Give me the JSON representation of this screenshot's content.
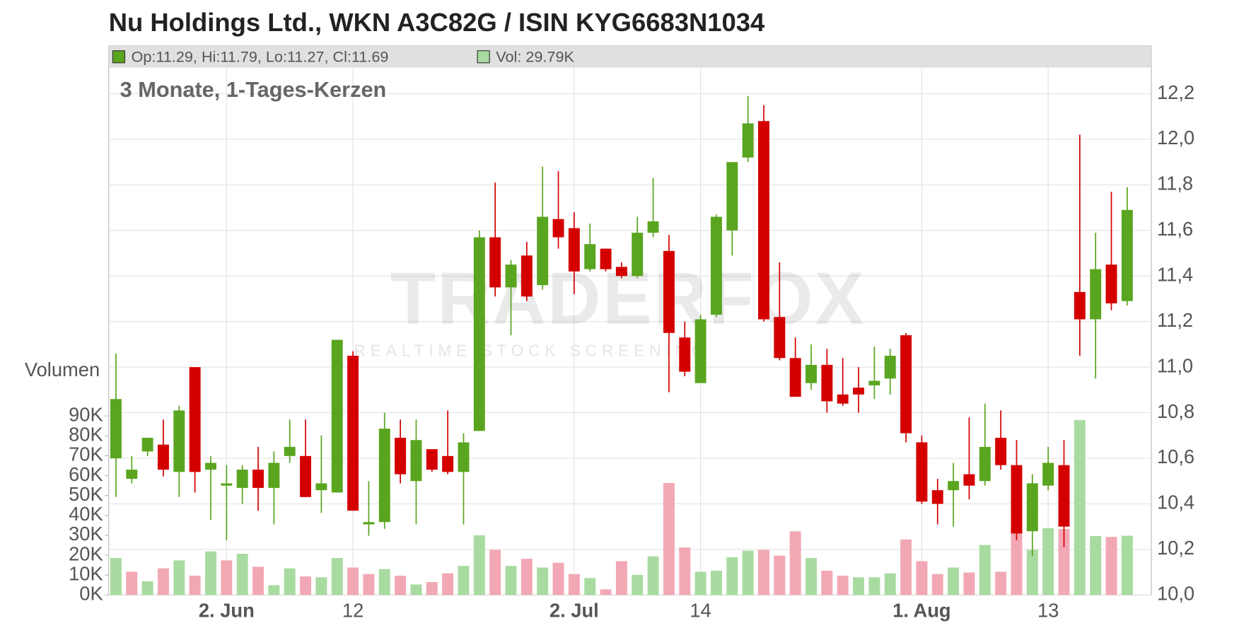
{
  "chart_data": {
    "type": "candlestick",
    "title": "Nu Holdings Ltd., WKN A3C82G / ISIN KYG6683N1034",
    "subtitle": "3 Monate, 1-Tages-Kerzen",
    "legend": {
      "ohlc": "Op:11.29, Hi:11.79, Lo:11.27, Cl:11.69",
      "volume": "Vol: 29.79K"
    },
    "volume_label": "Volumen",
    "watermark": {
      "brand": "TRADERFOX",
      "tagline": "REALTIME STOCK SCREENING"
    },
    "categories": [
      null,
      null,
      null,
      null,
      null,
      null,
      null,
      "2. Jun",
      null,
      null,
      null,
      null,
      null,
      null,
      null,
      "12",
      null,
      null,
      null,
      null,
      null,
      null,
      null,
      null,
      null,
      null,
      null,
      null,
      null,
      "2. Jul",
      null,
      null,
      null,
      null,
      null,
      null,
      null,
      "14",
      null,
      null,
      null,
      null,
      null,
      null,
      null,
      null,
      null,
      null,
      null,
      null,
      null,
      "1. Aug",
      null,
      null,
      null,
      null,
      null,
      null,
      null,
      "13",
      null,
      null,
      null,
      null,
      null
    ],
    "open": [
      10.6,
      10.51,
      10.63,
      10.66,
      10.54,
      11.0,
      10.55,
      10.48,
      10.47,
      10.55,
      10.47,
      10.61,
      10.61,
      10.46,
      10.45,
      11.05,
      10.31,
      10.32,
      10.69,
      10.5,
      10.64,
      10.61,
      10.54,
      10.72,
      11.57,
      11.35,
      11.49,
      11.36,
      11.65,
      11.61,
      11.43,
      11.52,
      11.44,
      11.4,
      11.59,
      11.51,
      11.13,
      10.93,
      11.23,
      11.6,
      11.92,
      12.08,
      11.22,
      11.04,
      10.93,
      11.01,
      10.88,
      10.91,
      10.92,
      10.95,
      11.14,
      10.67,
      10.46,
      10.46,
      10.53,
      10.5,
      10.69,
      10.57,
      10.28,
      10.48,
      10.57,
      11.33,
      11.21,
      11.45,
      11.29
    ],
    "high": [
      11.06,
      10.61,
      10.69,
      10.77,
      10.83,
      11.0,
      10.61,
      10.57,
      10.57,
      10.65,
      10.63,
      10.77,
      10.77,
      10.7,
      11.12,
      11.07,
      10.5,
      10.8,
      10.77,
      10.77,
      10.64,
      10.81,
      10.71,
      11.6,
      11.81,
      11.47,
      11.55,
      11.88,
      11.86,
      11.68,
      11.63,
      11.52,
      11.46,
      11.66,
      11.83,
      11.58,
      11.2,
      11.23,
      11.67,
      11.9,
      12.19,
      12.15,
      11.46,
      11.13,
      11.1,
      11.08,
      11.04,
      11.0,
      11.09,
      11.08,
      11.15,
      10.7,
      10.51,
      10.58,
      10.78,
      10.84,
      10.81,
      10.68,
      10.53,
      10.65,
      10.68,
      12.02,
      11.59,
      11.77,
      11.79
    ],
    "low": [
      10.43,
      10.49,
      10.61,
      10.52,
      10.43,
      10.45,
      10.33,
      10.24,
      10.4,
      10.37,
      10.31,
      10.58,
      10.43,
      10.36,
      10.45,
      10.37,
      10.26,
      10.29,
      10.49,
      10.31,
      10.54,
      10.53,
      10.31,
      10.72,
      11.31,
      11.14,
      11.29,
      11.34,
      11.52,
      11.32,
      11.42,
      11.42,
      11.39,
      11.39,
      11.57,
      10.89,
      10.96,
      10.93,
      11.22,
      11.49,
      11.9,
      11.2,
      11.03,
      10.87,
      10.9,
      10.8,
      10.83,
      10.8,
      10.86,
      10.88,
      10.67,
      10.4,
      10.31,
      10.3,
      10.42,
      10.48,
      10.55,
      10.24,
      10.17,
      10.46,
      10.21,
      11.05,
      10.95,
      11.25,
      11.27
    ],
    "close": [
      10.86,
      10.55,
      10.69,
      10.55,
      10.81,
      10.54,
      10.58,
      10.49,
      10.55,
      10.47,
      10.58,
      10.65,
      10.43,
      10.49,
      11.12,
      10.37,
      10.32,
      10.73,
      10.53,
      10.68,
      10.55,
      10.54,
      10.67,
      11.57,
      11.35,
      11.45,
      11.31,
      11.66,
      11.57,
      11.42,
      11.54,
      11.43,
      11.4,
      11.59,
      11.64,
      11.15,
      10.98,
      11.21,
      11.66,
      11.9,
      12.07,
      11.21,
      11.04,
      10.87,
      11.01,
      10.85,
      10.84,
      10.88,
      10.94,
      11.05,
      10.71,
      10.41,
      10.4,
      10.5,
      10.48,
      10.65,
      10.57,
      10.27,
      10.49,
      10.58,
      10.3,
      11.21,
      11.43,
      11.28,
      11.69
    ],
    "volume": [
      18600,
      11700,
      6900,
      13400,
      17400,
      9700,
      21900,
      17400,
      20700,
      14200,
      4900,
      13400,
      9300,
      8900,
      18600,
      13800,
      10500,
      13000,
      9700,
      5300,
      6500,
      10900,
      14600,
      30000,
      22700,
      14600,
      18200,
      13800,
      16200,
      10500,
      8500,
      2800,
      17000,
      10100,
      19400,
      56300,
      23900,
      11700,
      12200,
      19000,
      22300,
      22700,
      19800,
      32000,
      18600,
      12200,
      9700,
      8900,
      8900,
      10900,
      27900,
      17000,
      10500,
      13800,
      11300,
      25100,
      11700,
      32000,
      22700,
      33600,
      33200,
      87900,
      29600,
      29200,
      29790
    ],
    "colors": {
      "up": "#5aa520",
      "down": "#d40000",
      "flat": "#3c7a14",
      "volume_up": "#a8dba0",
      "volume_down": "#f2a8b4"
    },
    "ylim": [
      10.0,
      12.41
    ],
    "yticks": [
      {
        "value": 10.0,
        "label": "10,0"
      },
      {
        "value": 10.2,
        "label": "10,2"
      },
      {
        "value": 10.4,
        "label": "10,4"
      },
      {
        "value": 10.6,
        "label": "10,6"
      },
      {
        "value": 10.8,
        "label": "10,8"
      },
      {
        "value": 11.0,
        "label": "11,0"
      },
      {
        "value": 11.2,
        "label": "11,2"
      },
      {
        "value": 11.4,
        "label": "11,4"
      },
      {
        "value": 11.6,
        "label": "11,6"
      },
      {
        "value": 11.8,
        "label": "11,8"
      },
      {
        "value": 12.0,
        "label": "12,0"
      },
      {
        "value": 12.2,
        "label": "12,2"
      }
    ],
    "y2lim": [
      0,
      276000
    ],
    "y2ticks": [
      {
        "value": 0,
        "label": "0K"
      },
      {
        "value": 10000,
        "label": "10K"
      },
      {
        "value": 20000,
        "label": "20K"
      },
      {
        "value": 30000,
        "label": "30K"
      },
      {
        "value": 40000,
        "label": "40K"
      },
      {
        "value": 50000,
        "label": "50K"
      },
      {
        "value": 60000,
        "label": "60K"
      },
      {
        "value": 70000,
        "label": "70K"
      },
      {
        "value": 80000,
        "label": "80K"
      },
      {
        "value": 90000,
        "label": "90K"
      }
    ],
    "grid": true
  }
}
